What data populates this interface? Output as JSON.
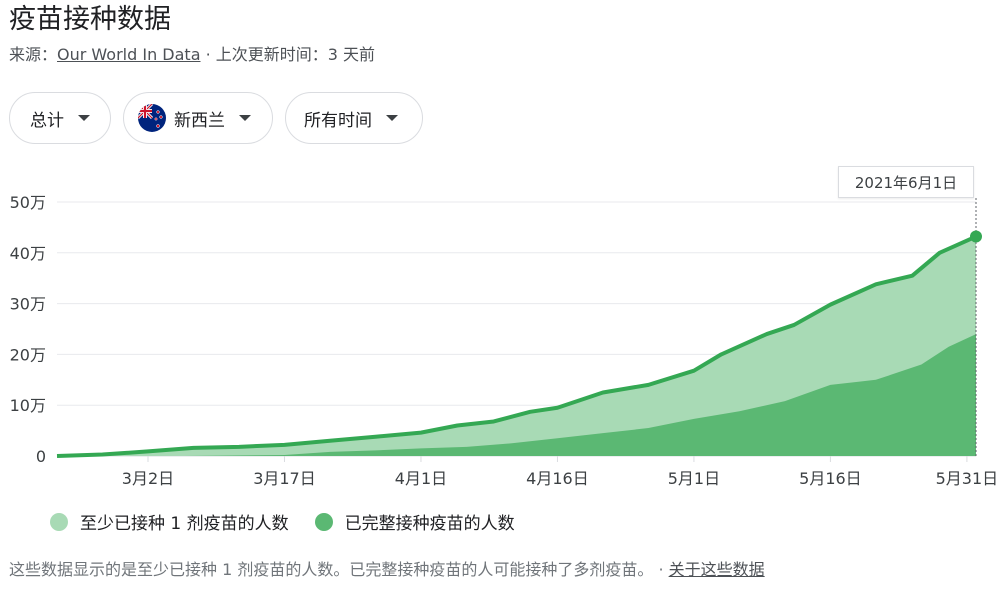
{
  "header": {
    "title": "疫苗接种数据",
    "source_prefix": "来源：",
    "source_link": "Our World In Data",
    "update_text": " · 上次更新时间：3 天前"
  },
  "filters": {
    "total_label": "总计",
    "country_label": "新西兰",
    "time_label": "所有时间"
  },
  "tooltip": {
    "date": "2021年6月1日"
  },
  "legend": {
    "series1": "至少已接种 1 剂疫苗的人数",
    "series2": "已完整接种疫苗的人数"
  },
  "footer": {
    "note": "这些数据显示的是至少已接种 1 剂疫苗的人数。已完整接种疫苗的人可能接种了多剂疫苗。",
    "separator": " · ",
    "about_link": "关于这些数据"
  },
  "colors": {
    "series1_fill": "#a8dab5",
    "series2_fill": "#5bb873",
    "line": "#34a853",
    "grid": "#e8eaed",
    "axis": "#dadce0"
  },
  "chart_data": {
    "type": "area",
    "ylabel_ticks": [
      "0",
      "10万",
      "20万",
      "30万",
      "40万",
      "50万"
    ],
    "ylim": [
      0,
      500000
    ],
    "xtick_labels": [
      "3月2日",
      "3月17日",
      "4月1日",
      "4月16日",
      "5月1日",
      "5月16日",
      "5月31日"
    ],
    "x_range_days_from_feb20_to_jun1": [
      0,
      101
    ],
    "series": [
      {
        "name": "至少已接种 1 剂疫苗的人数",
        "points": [
          [
            "2021-02-20",
            0
          ],
          [
            "2021-02-25",
            3000
          ],
          [
            "2021-03-02",
            9000
          ],
          [
            "2021-03-07",
            16000
          ],
          [
            "2021-03-12",
            18000
          ],
          [
            "2021-03-17",
            22000
          ],
          [
            "2021-03-22",
            30000
          ],
          [
            "2021-03-27",
            38000
          ],
          [
            "2021-04-01",
            46000
          ],
          [
            "2021-04-05",
            60000
          ],
          [
            "2021-04-09",
            68000
          ],
          [
            "2021-04-13",
            87000
          ],
          [
            "2021-04-16",
            95000
          ],
          [
            "2021-04-21",
            125000
          ],
          [
            "2021-04-26",
            140000
          ],
          [
            "2021-05-01",
            168000
          ],
          [
            "2021-05-04",
            200000
          ],
          [
            "2021-05-09",
            240000
          ],
          [
            "2021-05-12",
            258000
          ],
          [
            "2021-05-16",
            298000
          ],
          [
            "2021-05-21",
            338000
          ],
          [
            "2021-05-25",
            355000
          ],
          [
            "2021-05-28",
            400000
          ],
          [
            "2021-06-01",
            432000
          ]
        ]
      },
      {
        "name": "已完整接种疫苗的人数",
        "points": [
          [
            "2021-02-20",
            0
          ],
          [
            "2021-03-06",
            0
          ],
          [
            "2021-03-17",
            2000
          ],
          [
            "2021-03-22",
            8000
          ],
          [
            "2021-03-27",
            11000
          ],
          [
            "2021-04-01",
            15000
          ],
          [
            "2021-04-06",
            18000
          ],
          [
            "2021-04-11",
            25000
          ],
          [
            "2021-04-16",
            35000
          ],
          [
            "2021-04-21",
            45000
          ],
          [
            "2021-04-26",
            55000
          ],
          [
            "2021-05-01",
            73000
          ],
          [
            "2021-05-06",
            88000
          ],
          [
            "2021-05-11",
            108000
          ],
          [
            "2021-05-16",
            140000
          ],
          [
            "2021-05-21",
            150000
          ],
          [
            "2021-05-26",
            180000
          ],
          [
            "2021-05-29",
            215000
          ],
          [
            "2021-06-01",
            240000
          ]
        ]
      }
    ]
  }
}
